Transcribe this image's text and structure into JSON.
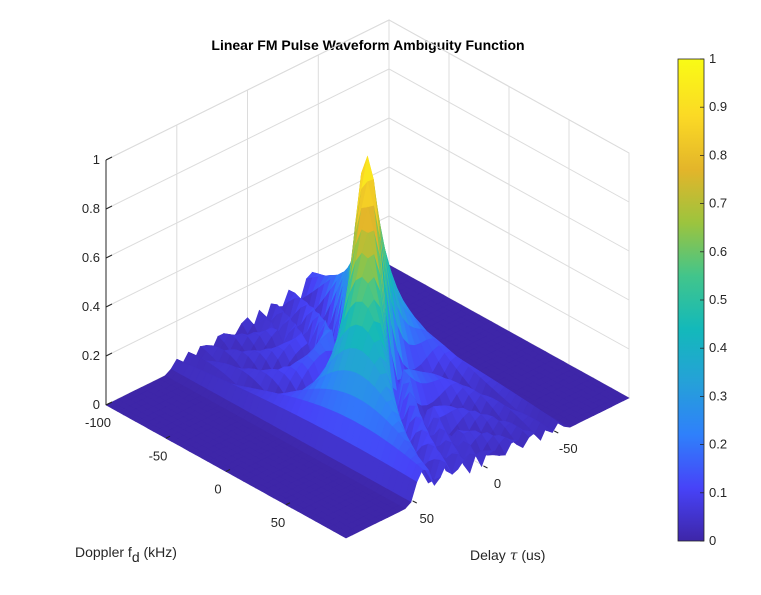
{
  "chart_data": {
    "type": "surface",
    "title": "Linear FM Pulse Waveform Ambiguity Function",
    "xlabel_prefix": "Doppler f",
    "xlabel_sub": "d",
    "xlabel_suffix": " (kHz)",
    "ylabel_prefix": "Delay ",
    "ylabel_symbol": "τ",
    "ylabel_suffix": " (us)",
    "zlabel": "",
    "xlim": [
      -100,
      100
    ],
    "ylim": [
      -100,
      100
    ],
    "zlim": [
      0,
      1
    ],
    "x_ticks": [
      "-100",
      "-50",
      "0",
      "50"
    ],
    "x_tick_values": [
      -100,
      -50,
      0,
      50
    ],
    "y_ticks": [
      "-50",
      "0",
      "50"
    ],
    "y_tick_values": [
      -50,
      0,
      50
    ],
    "z_ticks": [
      "0",
      "0.2",
      "0.4",
      "0.6",
      "0.8",
      "1"
    ],
    "z_tick_values": [
      0,
      0.2,
      0.4,
      0.6,
      0.8,
      1
    ],
    "surface": {
      "description_of_shape": "diagonal ridge (range-Doppler coupling) peaking at 1 at delay 0, Doppler 0, with low sidelobes ~0.1-0.3 near zero Doppler; zero outside the pulse delay support",
      "peak_value": 1,
      "ridge_doppler_at_delay_min": -100,
      "ridge_doppler_at_delay_max": 100,
      "delay_support": [
        -55,
        55
      ]
    },
    "colormap": "parula",
    "colorbar": {
      "ticks": [
        "0",
        "0.1",
        "0.2",
        "0.3",
        "0.4",
        "0.5",
        "0.6",
        "0.7",
        "0.8",
        "0.9",
        "1"
      ],
      "tick_values": [
        0,
        0.1,
        0.2,
        0.3,
        0.4,
        0.5,
        0.6,
        0.7,
        0.8,
        0.9,
        1
      ]
    },
    "colors": [
      "#3e26a8",
      "#4743f8",
      "#2f80fb",
      "#25a1d8",
      "#13b9ba",
      "#42c58b",
      "#9cc43e",
      "#e3b52a",
      "#fbd925",
      "#f9fb15"
    ]
  }
}
